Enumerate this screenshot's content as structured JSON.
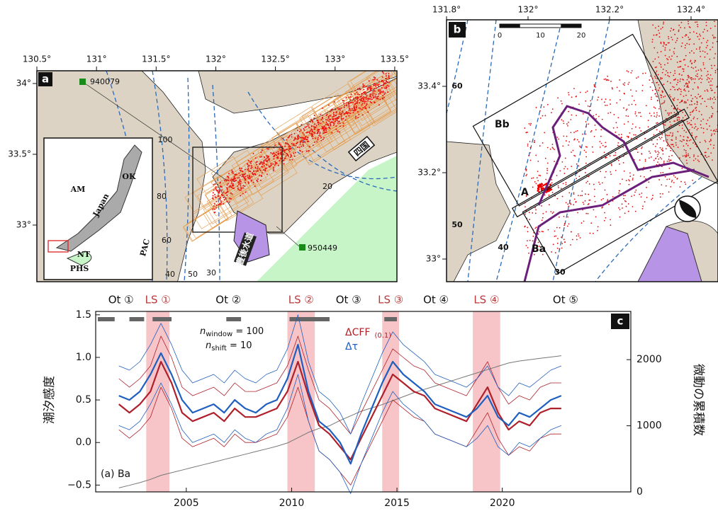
{
  "panel_a": {
    "label": "a",
    "lon_ticks": [
      {
        "value": 130.5,
        "label": "130.5°"
      },
      {
        "value": 131,
        "label": "131°"
      },
      {
        "value": 131.5,
        "label": "131.5°"
      },
      {
        "value": 132,
        "label": "132°"
      },
      {
        "value": 132.5,
        "label": "132.5°"
      },
      {
        "value": 133,
        "label": "133°"
      },
      {
        "value": 133.5,
        "label": "133.5°"
      }
    ],
    "lat_ticks": [
      {
        "value": 33,
        "label": "33°"
      },
      {
        "value": 33.5,
        "label": "33.5°"
      },
      {
        "value": 34,
        "label": "34°"
      }
    ],
    "stations": [
      "940079",
      "950449"
    ],
    "contour_labels": [
      100,
      80,
      60,
      40,
      20,
      50,
      30
    ],
    "inset_labels": [
      "AM",
      "OK",
      "Japan",
      "NT",
      "PHS",
      "PAC"
    ],
    "region_labels": [
      "四国",
      "豊後水道"
    ]
  },
  "panel_b": {
    "label": "b",
    "lon_ticks": [
      {
        "value": 131.8,
        "label": "131.8°"
      },
      {
        "value": 132,
        "label": "132°"
      },
      {
        "value": 132.2,
        "label": "132.2°"
      },
      {
        "value": 132.4,
        "label": "132.4°"
      }
    ],
    "lat_ticks": [
      {
        "value": 33,
        "label": "33°"
      },
      {
        "value": 33.2,
        "label": "33.2°"
      },
      {
        "value": 33.4,
        "label": "33.4°"
      }
    ],
    "scale": [
      0,
      10,
      20
    ],
    "contour_labels": [
      60,
      50,
      40,
      30
    ],
    "box_labels": [
      "Bb",
      "A",
      "Ba"
    ]
  },
  "chart_data": {
    "type": "line",
    "label": "c",
    "ylabel": "潮汐感度",
    "y2label": "微動の累積数",
    "subset_label": "(a) Ba",
    "annotation": [
      {
        "var": "n",
        "sub": "window",
        "text": " = 100"
      },
      {
        "var": "n",
        "sub": "shift",
        "text": " = 10"
      }
    ],
    "xlim": [
      2000.7,
      2026.1
    ],
    "xticks": [
      2005,
      2010,
      2015,
      2020
    ],
    "ylim": [
      -0.58,
      1.54
    ],
    "yticks": [
      {
        "value": -0.5,
        "label": "−0.5"
      },
      {
        "value": 0,
        "label": "0.0"
      },
      {
        "value": 0.5,
        "label": "0.5"
      },
      {
        "value": 1,
        "label": "1.0"
      },
      {
        "value": 1.5,
        "label": "1.5"
      }
    ],
    "y2lim": [
      0,
      2730
    ],
    "y2ticks": [
      0,
      1000,
      2000
    ],
    "ls_periods": [
      {
        "label": "LS ①",
        "range": [
          2003.1,
          2004.2
        ]
      },
      {
        "label": "LS ②",
        "range": [
          2009.8,
          2011.1
        ]
      },
      {
        "label": "LS ③",
        "range": [
          2014.3,
          2015.1
        ]
      },
      {
        "label": "LS ④",
        "range": [
          2018.6,
          2019.9
        ]
      }
    ],
    "ot_periods": [
      {
        "label": "Ot ①",
        "range": [
          2000.7,
          2003.1
        ]
      },
      {
        "label": "Ot ②",
        "range": [
          2004.2,
          2009.8
        ]
      },
      {
        "label": "Ot ③",
        "range": [
          2011.1,
          2014.3
        ]
      },
      {
        "label": "Ot ④",
        "range": [
          2015.1,
          2018.6
        ]
      },
      {
        "label": "Ot ⑤",
        "range": [
          2019.9,
          2026.1
        ]
      }
    ],
    "gray_bars": [
      [
        2000.8,
        2001.6
      ],
      [
        2002.3,
        2003.0
      ],
      [
        2003.4,
        2004.3
      ],
      [
        2006.9,
        2007.6
      ],
      [
        2009.9,
        2011.8
      ],
      [
        2014.4,
        2015.0
      ]
    ],
    "x": [
      2001.8,
      2002.3,
      2002.8,
      2003.3,
      2003.8,
      2004.3,
      2004.8,
      2005.3,
      2005.8,
      2006.3,
      2006.8,
      2007.3,
      2007.8,
      2008.3,
      2008.8,
      2009.3,
      2009.8,
      2010.3,
      2010.8,
      2011.3,
      2011.8,
      2012.3,
      2012.8,
      2013.3,
      2013.8,
      2014.3,
      2014.8,
      2015.3,
      2015.8,
      2016.3,
      2016.8,
      2017.3,
      2017.8,
      2018.3,
      2018.8,
      2019.3,
      2019.8,
      2020.3,
      2020.8,
      2021.3,
      2021.8,
      2022.3,
      2022.8
    ],
    "series": [
      {
        "name": "ΔCFF",
        "sub": "(0.1)",
        "color": "#b0202a",
        "values": [
          0.45,
          0.35,
          0.45,
          0.6,
          0.95,
          0.7,
          0.35,
          0.25,
          0.3,
          0.35,
          0.25,
          0.4,
          0.3,
          0.3,
          0.35,
          0.4,
          0.6,
          0.95,
          0.55,
          0.2,
          0.1,
          -0.05,
          -0.2,
          0.05,
          0.3,
          0.55,
          0.8,
          0.7,
          0.6,
          0.55,
          0.4,
          0.35,
          0.3,
          0.25,
          0.45,
          0.65,
          0.35,
          0.15,
          0.25,
          0.2,
          0.35,
          0.4,
          0.4
        ],
        "upper": [
          0.75,
          0.65,
          0.75,
          0.9,
          1.25,
          1.0,
          0.65,
          0.55,
          0.6,
          0.65,
          0.55,
          0.7,
          0.6,
          0.6,
          0.65,
          0.7,
          0.9,
          1.25,
          0.85,
          0.5,
          0.4,
          0.25,
          0.1,
          0.35,
          0.6,
          0.85,
          1.1,
          1.0,
          0.9,
          0.85,
          0.7,
          0.65,
          0.6,
          0.55,
          0.75,
          0.95,
          0.65,
          0.45,
          0.55,
          0.5,
          0.65,
          0.7,
          0.7
        ],
        "lower": [
          0.15,
          0.05,
          0.15,
          0.3,
          0.65,
          0.4,
          0.05,
          -0.05,
          0,
          0.05,
          -0.05,
          0.1,
          0,
          0,
          0.05,
          0.1,
          0.3,
          0.65,
          0.25,
          -0.1,
          -0.2,
          -0.35,
          -0.5,
          -0.25,
          0,
          0.25,
          0.5,
          0.4,
          0.3,
          0.25,
          0.1,
          0.05,
          0,
          -0.05,
          0.15,
          0.35,
          0.05,
          -0.15,
          -0.05,
          -0.1,
          0.05,
          0.1,
          0.1
        ]
      },
      {
        "name": "Δτ",
        "color": "#1f5fbf",
        "values": [
          0.55,
          0.5,
          0.6,
          0.8,
          1.05,
          0.8,
          0.5,
          0.35,
          0.4,
          0.45,
          0.35,
          0.5,
          0.4,
          0.35,
          0.45,
          0.5,
          0.75,
          1.15,
          0.6,
          0.25,
          0.15,
          0.0,
          -0.25,
          0.1,
          0.4,
          0.7,
          0.95,
          0.8,
          0.7,
          0.6,
          0.45,
          0.4,
          0.35,
          0.3,
          0.4,
          0.55,
          0.3,
          0.2,
          0.35,
          0.3,
          0.4,
          0.5,
          0.55
        ],
        "upper": [
          0.9,
          0.85,
          0.95,
          1.15,
          1.4,
          1.15,
          0.85,
          0.7,
          0.75,
          0.8,
          0.7,
          0.85,
          0.75,
          0.7,
          0.8,
          0.85,
          1.1,
          1.5,
          0.95,
          0.6,
          0.5,
          0.35,
          0.1,
          0.45,
          0.75,
          1.05,
          1.3,
          1.15,
          1.05,
          0.95,
          0.8,
          0.75,
          0.7,
          0.65,
          0.75,
          0.9,
          0.65,
          0.55,
          0.7,
          0.65,
          0.75,
          0.85,
          0.9
        ],
        "lower": [
          0.2,
          0.15,
          0.25,
          0.45,
          0.7,
          0.45,
          0.15,
          0,
          0.05,
          0.1,
          0,
          0.15,
          0.05,
          0,
          0.1,
          0.15,
          0.4,
          0.8,
          0.25,
          -0.1,
          -0.2,
          -0.35,
          -0.6,
          -0.25,
          0.05,
          0.35,
          0.6,
          0.45,
          0.35,
          0.25,
          0.1,
          0.05,
          0,
          -0.05,
          0.05,
          0.2,
          -0.05,
          -0.15,
          0,
          -0.05,
          0.05,
          0.15,
          0.2
        ]
      }
    ],
    "cumulative": {
      "color": "#777777",
      "axis": "y2",
      "values": [
        60,
        100,
        140,
        190,
        250,
        290,
        330,
        370,
        410,
        450,
        490,
        530,
        570,
        610,
        650,
        690,
        740,
        820,
        900,
        960,
        1000,
        1080,
        1150,
        1220,
        1270,
        1320,
        1380,
        1440,
        1500,
        1550,
        1600,
        1650,
        1700,
        1750,
        1800,
        1850,
        1900,
        1950,
        1980,
        2000,
        2020,
        2040,
        2060
      ]
    }
  }
}
